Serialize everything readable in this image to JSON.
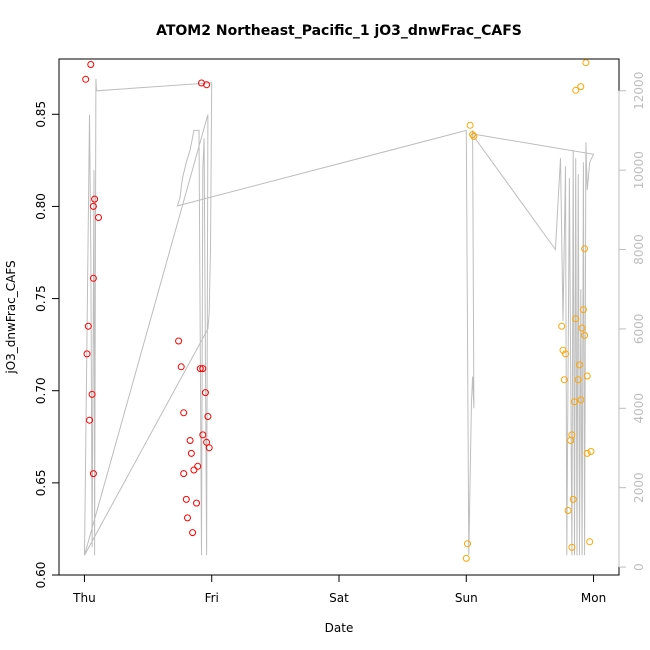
{
  "chart_data": {
    "type": "scatter",
    "title": "ATOM2 Northeast_Pacific_1 jO3_dnwFrac_CAFS",
    "xlabel": "Date",
    "ylabel": "jO3_dnwFrac_CAFS",
    "x_ticks": [
      {
        "label": "Thu",
        "value": 0
      },
      {
        "label": "Fri",
        "value": 1
      },
      {
        "label": "Sat",
        "value": 2
      },
      {
        "label": "Sun",
        "value": 3
      },
      {
        "label": "Mon",
        "value": 4
      }
    ],
    "xlim": [
      -0.2,
      4.2
    ],
    "ylim": [
      0.6,
      0.88
    ],
    "y_ticks": [
      "0.60",
      "0.65",
      "0.70",
      "0.75",
      "0.80",
      "0.85"
    ],
    "y2_ticks": [
      "0",
      "2000",
      "4000",
      "6000",
      "8000",
      "10000",
      "12000"
    ],
    "y2lim": [
      -200,
      12800
    ],
    "series": [
      {
        "color": "#ff0000",
        "points": [
          [
            0.01,
            0.869
          ],
          [
            0.05,
            0.877
          ],
          [
            0.08,
            0.804
          ],
          [
            0.07,
            0.8
          ],
          [
            0.11,
            0.794
          ],
          [
            0.07,
            0.761
          ],
          [
            0.03,
            0.735
          ],
          [
            0.02,
            0.72
          ],
          [
            0.06,
            0.698
          ],
          [
            0.04,
            0.684
          ],
          [
            0.07,
            0.655
          ],
          [
            0.74,
            0.727
          ],
          [
            0.76,
            0.713
          ],
          [
            0.78,
            0.688
          ],
          [
            0.83,
            0.673
          ],
          [
            0.84,
            0.666
          ],
          [
            0.78,
            0.655
          ],
          [
            0.86,
            0.657
          ],
          [
            0.89,
            0.659
          ],
          [
            0.8,
            0.641
          ],
          [
            0.88,
            0.639
          ],
          [
            0.81,
            0.631
          ],
          [
            0.85,
            0.623
          ],
          [
            0.91,
            0.712
          ],
          [
            0.93,
            0.712
          ],
          [
            0.95,
            0.699
          ],
          [
            0.97,
            0.686
          ],
          [
            0.93,
            0.676
          ],
          [
            0.96,
            0.672
          ],
          [
            0.98,
            0.669
          ],
          [
            0.92,
            0.867
          ],
          [
            0.96,
            0.866
          ]
        ]
      },
      {
        "color": "#ffa500",
        "points": [
          [
            3.03,
            0.844
          ],
          [
            3.05,
            0.839
          ],
          [
            3.06,
            0.838
          ],
          [
            3.01,
            0.617
          ],
          [
            3.0,
            0.609
          ],
          [
            3.75,
            0.735
          ],
          [
            3.76,
            0.722
          ],
          [
            3.78,
            0.72
          ],
          [
            3.77,
            0.706
          ],
          [
            3.83,
            0.676
          ],
          [
            3.82,
            0.673
          ],
          [
            3.85,
            0.694
          ],
          [
            3.8,
            0.635
          ],
          [
            3.84,
            0.641
          ],
          [
            3.83,
            0.615
          ],
          [
            3.88,
            0.706
          ],
          [
            3.89,
            0.714
          ],
          [
            3.91,
            0.734
          ],
          [
            3.92,
            0.744
          ],
          [
            3.93,
            0.73
          ],
          [
            3.9,
            0.695
          ],
          [
            3.86,
            0.739
          ],
          [
            3.95,
            0.708
          ],
          [
            3.95,
            0.666
          ],
          [
            3.98,
            0.667
          ],
          [
            3.97,
            0.618
          ],
          [
            3.93,
            0.777
          ],
          [
            3.86,
            0.863
          ],
          [
            3.9,
            0.865
          ],
          [
            3.94,
            0.878
          ]
        ]
      }
    ],
    "altitude_line": {
      "color": "#bdbdbd",
      "axis": "right",
      "points": [
        [
          0.0,
          300
        ],
        [
          0.04,
          11400
        ],
        [
          0.05,
          8000
        ],
        [
          0.06,
          500
        ],
        [
          0.075,
          10000
        ],
        [
          0.08,
          300
        ],
        [
          0.09,
          12300
        ],
        [
          0.095,
          12000
        ],
        [
          1.0,
          12200
        ],
        [
          0.99,
          8000
        ],
        [
          0.98,
          6400
        ],
        [
          0.97,
          6000
        ],
        [
          0.0,
          300
        ],
        [
          0.97,
          11400
        ],
        [
          0.96,
          300
        ],
        [
          0.94,
          10800
        ],
        [
          0.93,
          10000
        ],
        [
          0.92,
          300
        ],
        [
          0.9,
          11000
        ],
        [
          0.86,
          11000
        ],
        [
          0.83,
          10500
        ],
        [
          0.8,
          10200
        ],
        [
          0.77,
          9800
        ],
        [
          0.75,
          9300
        ],
        [
          0.73,
          9100
        ],
        [
          3.0,
          11000
        ],
        [
          3.02,
          300
        ],
        [
          3.04,
          4100
        ],
        [
          3.05,
          4800
        ],
        [
          3.06,
          4000
        ],
        [
          3.05,
          11000
        ],
        [
          3.07,
          10800
        ],
        [
          3.7,
          8000
        ],
        [
          3.74,
          10300
        ],
        [
          3.76,
          6200
        ],
        [
          3.78,
          10100
        ],
        [
          3.79,
          300
        ],
        [
          3.81,
          9800
        ],
        [
          3.83,
          300
        ],
        [
          3.84,
          10500
        ],
        [
          3.85,
          300
        ],
        [
          3.86,
          10300
        ],
        [
          3.87,
          300
        ],
        [
          3.88,
          9900
        ],
        [
          3.89,
          300
        ],
        [
          3.9,
          7000
        ],
        [
          3.91,
          300
        ],
        [
          3.92,
          10200
        ],
        [
          3.93,
          300
        ],
        [
          3.94,
          10700
        ],
        [
          3.95,
          9500
        ],
        [
          3.97,
          10200
        ],
        [
          4.0,
          10400
        ],
        [
          3.07,
          10900
        ]
      ]
    }
  }
}
